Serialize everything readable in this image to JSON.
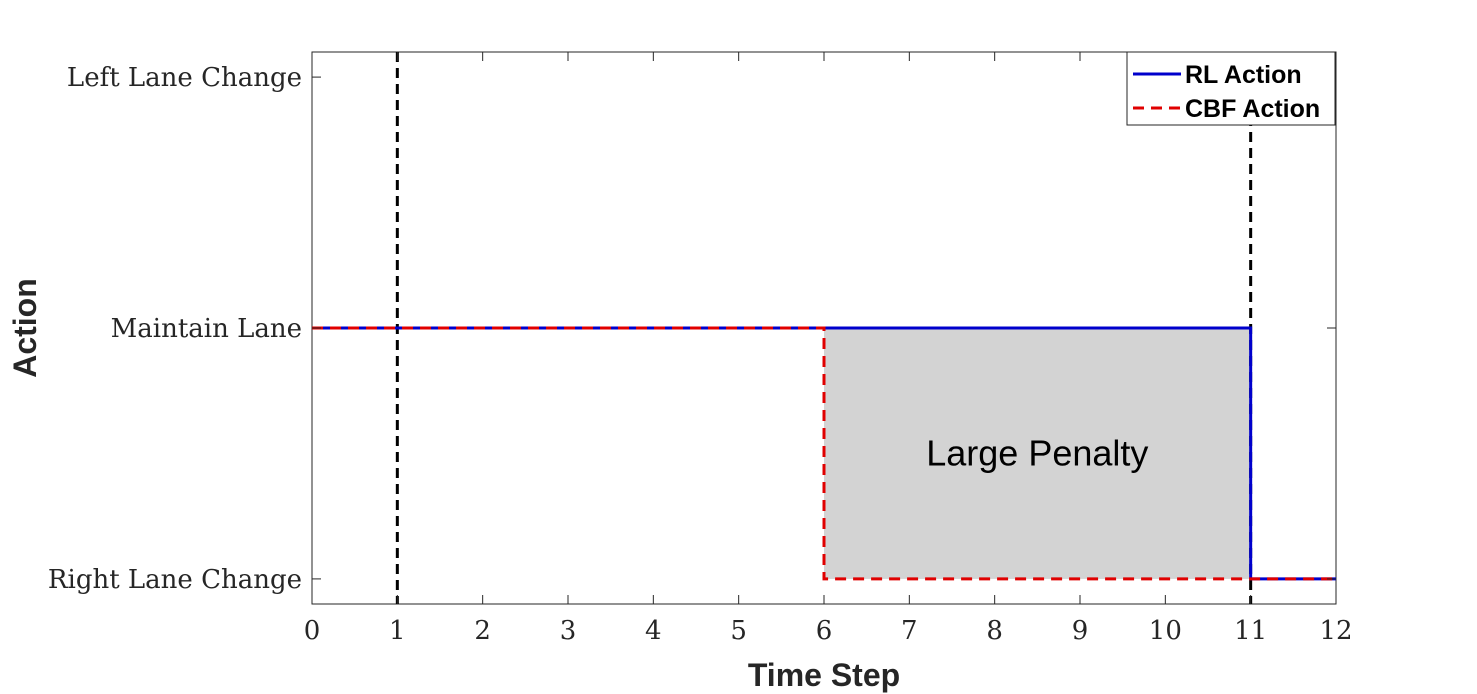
{
  "chart_data": {
    "type": "line",
    "xlabel": "Time Step",
    "ylabel": "Action",
    "xlim": [
      0,
      12
    ],
    "ylim": [
      -1.1,
      1.1
    ],
    "x_ticks": [
      0,
      1,
      2,
      3,
      4,
      5,
      6,
      7,
      8,
      9,
      10,
      11,
      12
    ],
    "y_ticks": [
      {
        "value": -1,
        "label": "Right Lane Change"
      },
      {
        "value": 0,
        "label": "Maintain Lane"
      },
      {
        "value": 1,
        "label": "Left Lane Change"
      }
    ],
    "grid": false,
    "legend_position": "top-right",
    "series": [
      {
        "name": "RL Action",
        "style": "solid",
        "color": "#0000cc",
        "x": [
          0,
          11,
          11,
          12
        ],
        "y": [
          0,
          0,
          -1,
          -1
        ]
      },
      {
        "name": "CBF Action",
        "style": "dashed",
        "color": "#e00000",
        "x": [
          0,
          6,
          6,
          11,
          11,
          12
        ],
        "y": [
          0,
          0,
          -1,
          -1,
          -1,
          -1
        ]
      }
    ],
    "vertical_lines": [
      {
        "x": 1,
        "style": "dashed",
        "color": "#000000"
      },
      {
        "x": 11,
        "style": "dashed",
        "color": "#000000"
      }
    ],
    "shaded_region": {
      "x": [
        6,
        11
      ],
      "y": [
        -1,
        0
      ],
      "color": "#d3d3d3",
      "label": "Large Penalty"
    }
  }
}
